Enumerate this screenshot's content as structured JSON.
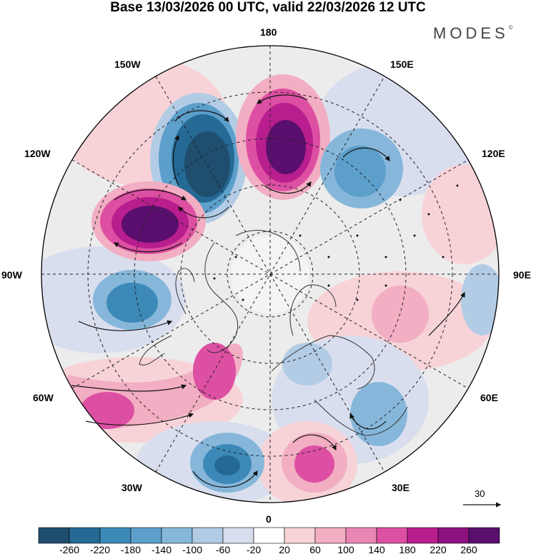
{
  "header": {
    "title": "Base 13/03/2026 00 UTC, valid 22/03/2026 12 UTC",
    "brand": "MODES",
    "brand_mark": "©"
  },
  "map": {
    "lon_labels": [
      "180",
      "150E",
      "120E",
      "90E",
      "60E",
      "30E",
      "0",
      "30W",
      "60W",
      "90W",
      "120W",
      "150W"
    ],
    "vector_reference": "30"
  },
  "colorbar": {
    "labels": [
      "-260",
      "-220",
      "-180",
      "-140",
      "-100",
      "-60",
      "-20",
      "20",
      "60",
      "100",
      "140",
      "180",
      "220",
      "260"
    ],
    "colors": [
      "#1f4e6e",
      "#256a95",
      "#3c89b8",
      "#5c9fcb",
      "#86b7da",
      "#b3cce5",
      "#d9deee",
      "#ffffff",
      "#f7d3d8",
      "#f2aec2",
      "#e986b3",
      "#dd4fa2",
      "#b81e8d",
      "#8d1180",
      "#5a0f6e"
    ]
  },
  "colors": {
    "positive_anomaly": "#b81e8d",
    "negative_anomaly": "#256a95",
    "neutral": "#ececec"
  }
}
